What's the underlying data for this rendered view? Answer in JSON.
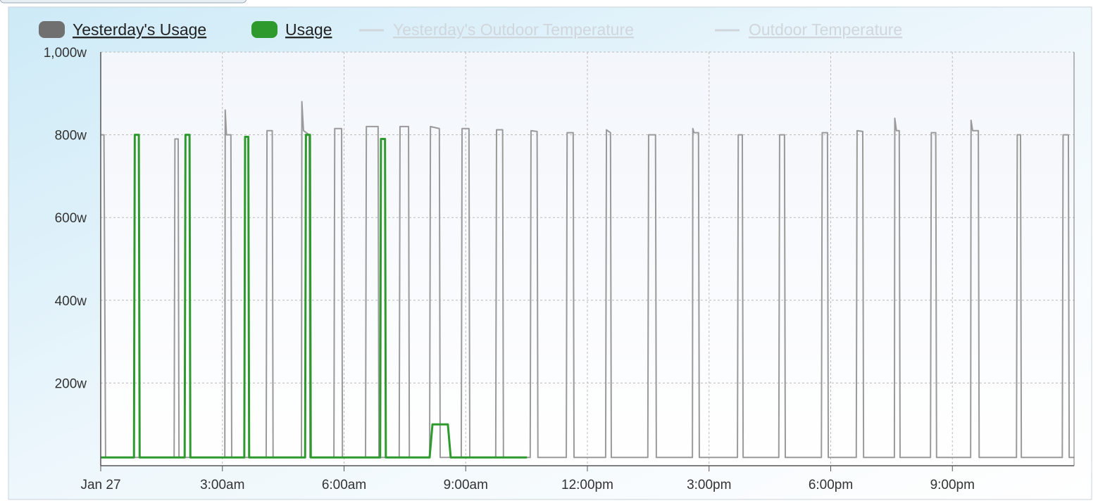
{
  "chart_data": {
    "type": "line",
    "xlim": [
      0,
      24
    ],
    "xticks": [
      {
        "value": 0,
        "label": "Jan 27"
      },
      {
        "value": 3,
        "label": "3:00am"
      },
      {
        "value": 6,
        "label": "6:00am"
      },
      {
        "value": 9,
        "label": "9:00am"
      },
      {
        "value": 12,
        "label": "12:00pm"
      },
      {
        "value": 15,
        "label": "3:00pm"
      },
      {
        "value": 18,
        "label": "6:00pm"
      },
      {
        "value": 21,
        "label": "9:00pm"
      }
    ],
    "ylim": [
      0,
      1000
    ],
    "yticks": [
      {
        "value": 200,
        "label": "200w"
      },
      {
        "value": 400,
        "label": "400w"
      },
      {
        "value": 600,
        "label": "600w"
      },
      {
        "value": 800,
        "label": "800w"
      },
      {
        "value": 1000,
        "label": "1,000w"
      }
    ],
    "grid": true,
    "series": [
      {
        "name": "Yesterday's Usage",
        "color": "#9a9a9a",
        "x": [
          0,
          0.08,
          0.12,
          1.81,
          1.83,
          1.91,
          1.93,
          3.06,
          3.07,
          3.1,
          3.21,
          3.23,
          4.08,
          4.1,
          4.23,
          4.25,
          4.95,
          4.96,
          5.0,
          5.14,
          5.16,
          5.75,
          5.77,
          5.94,
          5.96,
          6.53,
          6.55,
          6.84,
          6.86,
          7.36,
          7.38,
          7.59,
          7.61,
          8.11,
          8.13,
          8.35,
          8.37,
          8.89,
          8.91,
          9.08,
          9.1,
          9.74,
          9.76,
          9.91,
          9.93,
          10.59,
          10.61,
          10.76,
          10.78,
          11.48,
          11.5,
          11.65,
          11.67,
          12.45,
          12.47,
          12.57,
          12.59,
          13.49,
          13.51,
          13.68,
          13.7,
          14.59,
          14.6,
          14.63,
          14.74,
          14.76,
          15.7,
          15.72,
          15.82,
          15.84,
          16.72,
          16.74,
          16.86,
          16.88,
          17.77,
          17.79,
          17.92,
          17.94,
          18.63,
          18.65,
          18.79,
          18.81,
          19.57,
          19.58,
          19.62,
          19.69,
          19.71,
          20.46,
          20.48,
          20.59,
          20.61,
          21.45,
          21.46,
          21.5,
          21.64,
          21.66,
          22.58,
          22.6,
          22.68,
          22.7,
          23.71,
          23.73,
          23.86,
          23.88,
          24
        ],
        "values": [
          800,
          800,
          20,
          20,
          790,
          790,
          20,
          20,
          860,
          800,
          800,
          20,
          20,
          810,
          810,
          20,
          20,
          880,
          810,
          800,
          20,
          20,
          815,
          815,
          20,
          20,
          820,
          820,
          20,
          20,
          820,
          820,
          20,
          20,
          820,
          815,
          20,
          20,
          815,
          815,
          20,
          20,
          812,
          812,
          20,
          20,
          810,
          808,
          20,
          20,
          805,
          805,
          20,
          20,
          812,
          805,
          20,
          20,
          800,
          800,
          20,
          20,
          815,
          805,
          805,
          20,
          20,
          800,
          800,
          20,
          20,
          800,
          800,
          20,
          20,
          805,
          805,
          20,
          20,
          810,
          808,
          20,
          20,
          840,
          810,
          810,
          20,
          20,
          805,
          805,
          20,
          20,
          835,
          810,
          810,
          20,
          20,
          800,
          800,
          20,
          20,
          800,
          800,
          20,
          20
        ]
      },
      {
        "name": "Usage",
        "color": "#2e9a2e",
        "x": [
          0,
          0.82,
          0.84,
          0.94,
          0.96,
          2.07,
          2.09,
          2.19,
          2.21,
          3.54,
          3.56,
          3.64,
          3.66,
          5.04,
          5.06,
          5.16,
          5.18,
          6.89,
          6.91,
          7.01,
          7.03,
          8.11,
          8.18,
          8.56,
          8.63,
          10.51
        ],
        "values": [
          20,
          20,
          800,
          800,
          20,
          20,
          800,
          800,
          20,
          20,
          795,
          795,
          20,
          20,
          800,
          800,
          20,
          20,
          790,
          790,
          20,
          20,
          100,
          100,
          20,
          20
        ]
      }
    ],
    "hidden_series": [
      {
        "name": "Yesterday's Outdoor Temperature",
        "color": "#d0d6dc"
      },
      {
        "name": "Outdoor Temperature",
        "color": "#d0d6dc"
      }
    ]
  }
}
